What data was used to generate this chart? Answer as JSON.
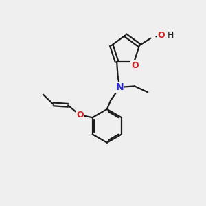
{
  "bg_color": "#efefef",
  "bond_color": "#1a1a1a",
  "bond_width": 1.6,
  "N_color": "#2222cc",
  "O_color": "#cc2222",
  "OH_color": "#2aaaaa",
  "figsize": [
    3.0,
    3.0
  ],
  "dpi": 100,
  "xlim": [
    0,
    10
  ],
  "ylim": [
    0,
    10
  ]
}
